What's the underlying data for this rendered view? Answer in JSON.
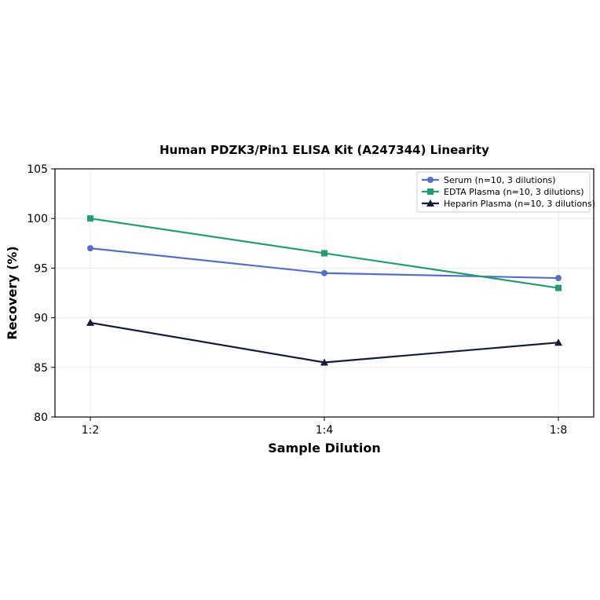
{
  "chart_data": {
    "type": "line",
    "title": "Human PDZK3/Pin1 ELISA Kit (A247344) Linearity",
    "xlabel": "Sample Dilution",
    "ylabel": "Recovery (%)",
    "categories": [
      "1:2",
      "1:4",
      "1:8"
    ],
    "ylim": [
      80,
      105
    ],
    "yticks": [
      "80",
      "85",
      "90",
      "95",
      "100",
      "105"
    ],
    "grid": true,
    "legend_position": "top-right",
    "series": [
      {
        "name": "Serum (n=10, 3 dilutions)",
        "values": [
          97,
          94.5,
          94
        ],
        "color": "#5470c6",
        "marker": "circle"
      },
      {
        "name": "EDTA Plasma (n=10, 3 dilutions)",
        "values": [
          100,
          96.5,
          93
        ],
        "color": "#239b77",
        "marker": "square"
      },
      {
        "name": "Heparin Plasma (n=10, 3 dilutions)",
        "values": [
          89.5,
          85.5,
          87.5
        ],
        "color": "#141c3a",
        "marker": "triangle"
      }
    ]
  }
}
